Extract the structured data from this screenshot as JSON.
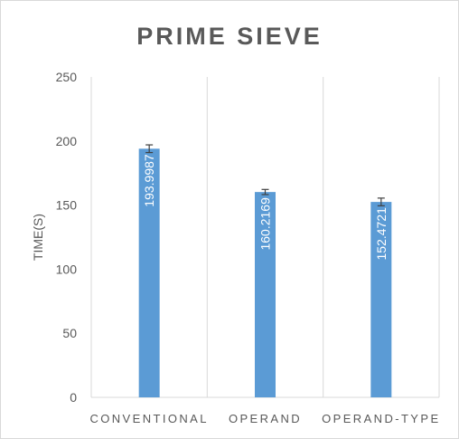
{
  "chart_data": {
    "type": "bar",
    "title": "PRIME SIEVE",
    "xlabel": "",
    "ylabel": "TIME(S)",
    "categories": [
      "CONVENTIONAL",
      "OPERAND",
      "OPERAND-TYPE"
    ],
    "values": [
      193.9987,
      160.2169,
      152.4721
    ],
    "error_bars": [
      3,
      2,
      3
    ],
    "data_labels": [
      "193.9987",
      "160.2169",
      "152.4721"
    ],
    "ylim": [
      0,
      250
    ],
    "yticks": [
      "0",
      "50",
      "100",
      "150",
      "200",
      "250"
    ],
    "ytick_values": [
      0,
      50,
      100,
      150,
      200,
      250
    ],
    "bar_color": "#5b9bd5",
    "grid": "vertical"
  }
}
